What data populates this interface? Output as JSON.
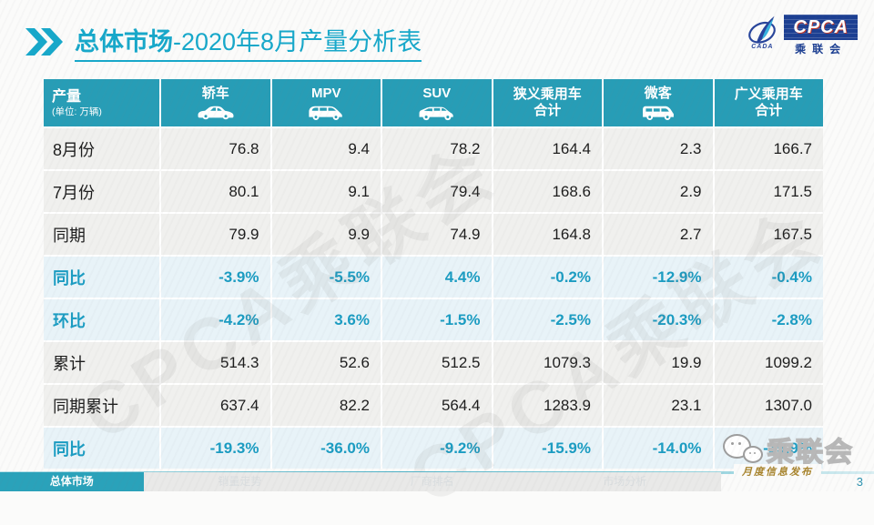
{
  "title": {
    "prefix": "总体市场",
    "suffix": "-2020年8月产量分析表"
  },
  "logo": {
    "cpca": "CPCA",
    "cada": "CADA",
    "cn": "乘联会"
  },
  "watermark": "CPCA乘联会",
  "table": {
    "header": {
      "label": "产量",
      "unit": "(单位: 万辆)",
      "columns": [
        {
          "label": "轿车",
          "icon": "sedan-icon"
        },
        {
          "label": "MPV",
          "icon": "mpv-icon"
        },
        {
          "label": "SUV",
          "icon": "suv-icon"
        },
        {
          "label": "狭义乘用车",
          "label2": "合计"
        },
        {
          "label": "微客",
          "icon": "microvan-icon"
        },
        {
          "label": "广义乘用车",
          "label2": "合计"
        }
      ]
    },
    "rows": [
      {
        "label": "8月份",
        "type": "normal",
        "values": [
          "76.8",
          "9.4",
          "78.2",
          "164.4",
          "2.3",
          "166.7"
        ]
      },
      {
        "label": "7月份",
        "type": "normal",
        "values": [
          "80.1",
          "9.1",
          "79.4",
          "168.6",
          "2.9",
          "171.5"
        ]
      },
      {
        "label": "同期",
        "type": "normal",
        "values": [
          "79.9",
          "9.9",
          "74.9",
          "164.8",
          "2.7",
          "167.5"
        ]
      },
      {
        "label": "同比",
        "type": "percent",
        "values": [
          "-3.9%",
          "-5.5%",
          "4.4%",
          "-0.2%",
          "-12.9%",
          "-0.4%"
        ]
      },
      {
        "label": "环比",
        "type": "percent",
        "values": [
          "-4.2%",
          "3.6%",
          "-1.5%",
          "-2.5%",
          "-20.3%",
          "-2.8%"
        ]
      },
      {
        "label": "累计",
        "type": "normal",
        "values": [
          "514.3",
          "52.6",
          "512.5",
          "1079.3",
          "19.9",
          "1099.2"
        ]
      },
      {
        "label": "同期累计",
        "type": "normal",
        "values": [
          "637.4",
          "82.2",
          "564.4",
          "1283.9",
          "23.1",
          "1307.0"
        ]
      },
      {
        "label": "同比",
        "type": "percent",
        "values": [
          "-19.3%",
          "-36.0%",
          "-9.2%",
          "-15.9%",
          "-14.0%",
          "-15.9%"
        ]
      }
    ]
  },
  "footer": {
    "tabs": [
      {
        "label": "总体市场",
        "active": true
      },
      {
        "label": "销量走势",
        "active": false
      },
      {
        "label": "厂商排名",
        "active": false
      },
      {
        "label": "市场分析",
        "active": false
      }
    ],
    "wechat_label": "乘联会",
    "publication": "月度信息发布",
    "page_number": "3"
  },
  "colors": {
    "accent": "#17a8ca",
    "header_bg": "#279db6",
    "percent_text": "#1b9cc2",
    "percent_row_bg": "#e8f3f8",
    "row_bg": "#f0f0ee",
    "logo_navy": "#1c3f92",
    "gold": "#a8842d"
  }
}
